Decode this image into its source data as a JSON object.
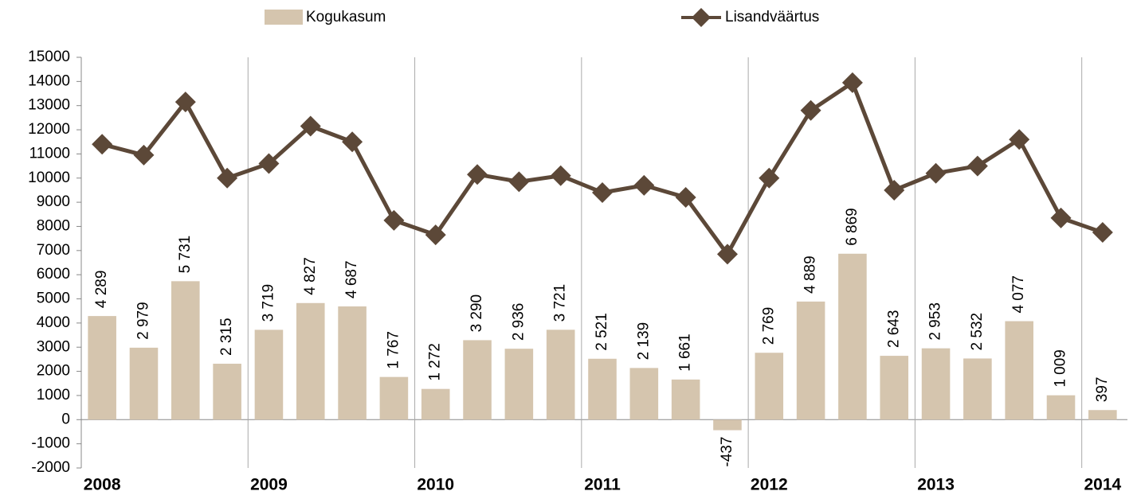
{
  "chart_data": {
    "type": "bar-line",
    "categories": [
      "2008",
      null,
      null,
      null,
      "2009",
      null,
      null,
      null,
      "2010",
      null,
      null,
      null,
      "2011",
      null,
      null,
      null,
      "2012",
      null,
      null,
      null,
      "2013",
      null,
      null,
      null,
      "2014"
    ],
    "series": [
      {
        "name": "Kogukasum",
        "type": "bar",
        "color": "#d5c5ae",
        "values": [
          4289,
          2979,
          5731,
          2315,
          3719,
          4827,
          4687,
          1767,
          1272,
          3290,
          2936,
          3721,
          2521,
          2139,
          1661,
          -437,
          2769,
          4889,
          6869,
          2643,
          2953,
          2532,
          4077,
          1009,
          397
        ],
        "value_labels": [
          "4 289",
          "2 979",
          "5 731",
          "2 315",
          "3 719",
          "4 827",
          "4 687",
          "1 767",
          "1 272",
          "3 290",
          "2 936",
          "3 721",
          "2 521",
          "2 139",
          "1 661",
          "-437",
          "2 769",
          "4 889",
          "6 869",
          "2 643",
          "2 953",
          "2 532",
          "4 077",
          "1 009",
          "397"
        ]
      },
      {
        "name": "Lisandväärtus",
        "type": "line",
        "color": "#5c4838",
        "values": [
          11400,
          10950,
          13150,
          10000,
          10600,
          12150,
          11500,
          8250,
          7650,
          10150,
          9850,
          10100,
          9400,
          9700,
          9200,
          6850,
          10000,
          12800,
          13950,
          9500,
          10200,
          10500,
          11600,
          8350,
          7750
        ]
      }
    ],
    "ylim": [
      -2000,
      15000
    ],
    "yticks": [
      -2000,
      -1000,
      0,
      1000,
      2000,
      3000,
      4000,
      5000,
      6000,
      7000,
      8000,
      9000,
      10000,
      11000,
      12000,
      13000,
      14000,
      15000
    ],
    "legend": "top"
  }
}
